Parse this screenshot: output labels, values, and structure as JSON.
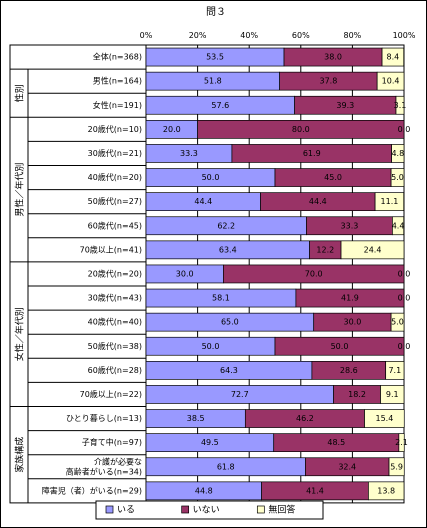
{
  "chart_data": {
    "type": "bar",
    "stacked": "percent",
    "orientation": "horizontal",
    "title": "問３",
    "xlim": [
      0,
      100
    ],
    "x_ticks": [
      "0%",
      "20%",
      "40%",
      "60%",
      "80%",
      "100%"
    ],
    "grid": true,
    "legend_position": "bottom",
    "group_labels": [
      {
        "label": "性別",
        "rows": [
          1,
          2
        ]
      },
      {
        "label": "男性／年代別",
        "rows": [
          3,
          8
        ]
      },
      {
        "label": "女性／年代別",
        "rows": [
          9,
          14
        ]
      },
      {
        "label": "家族構成",
        "rows": [
          15,
          18
        ]
      }
    ],
    "categories": [
      "全体(n=368)",
      "男性(n=164)",
      "女性(n=191)",
      "20歳代(n=10)",
      "30歳代(n=21)",
      "40歳代(n=20)",
      "50歳代(n=27)",
      "60歳代(n=45)",
      "70歳以上(n=41)",
      "20歳代(n=20)",
      "30歳代(n=43)",
      "40歳代(n=40)",
      "50歳代(n=38)",
      "60歳代(n=28)",
      "70歳以上(n=22)",
      "ひとり暮らし(n=13)",
      "子育て中(n=97)",
      "介護が必要な\n高齢者がいる(n=34)",
      "障害児（者）がいる(n=29)"
    ],
    "series": [
      {
        "name": "いる",
        "color": "#9999ff",
        "values": [
          53.5,
          51.8,
          57.6,
          20.0,
          33.3,
          50.0,
          44.4,
          62.2,
          63.4,
          30.0,
          58.1,
          65.0,
          50.0,
          64.3,
          72.7,
          38.5,
          49.5,
          61.8,
          44.8
        ]
      },
      {
        "name": "いない",
        "color": "#993366",
        "values": [
          38.0,
          37.8,
          39.3,
          80.0,
          61.9,
          45.0,
          44.4,
          33.3,
          12.2,
          70.0,
          41.9,
          30.0,
          50.0,
          28.6,
          18.2,
          46.2,
          48.5,
          32.4,
          41.4
        ]
      },
      {
        "name": "無回答",
        "color": "#ffffcc",
        "values": [
          8.4,
          10.4,
          3.1,
          0.0,
          4.8,
          5.0,
          11.1,
          4.4,
          24.4,
          0.0,
          0.0,
          5.0,
          0.0,
          7.1,
          9.1,
          15.4,
          2.1,
          5.9,
          13.8
        ]
      }
    ]
  }
}
